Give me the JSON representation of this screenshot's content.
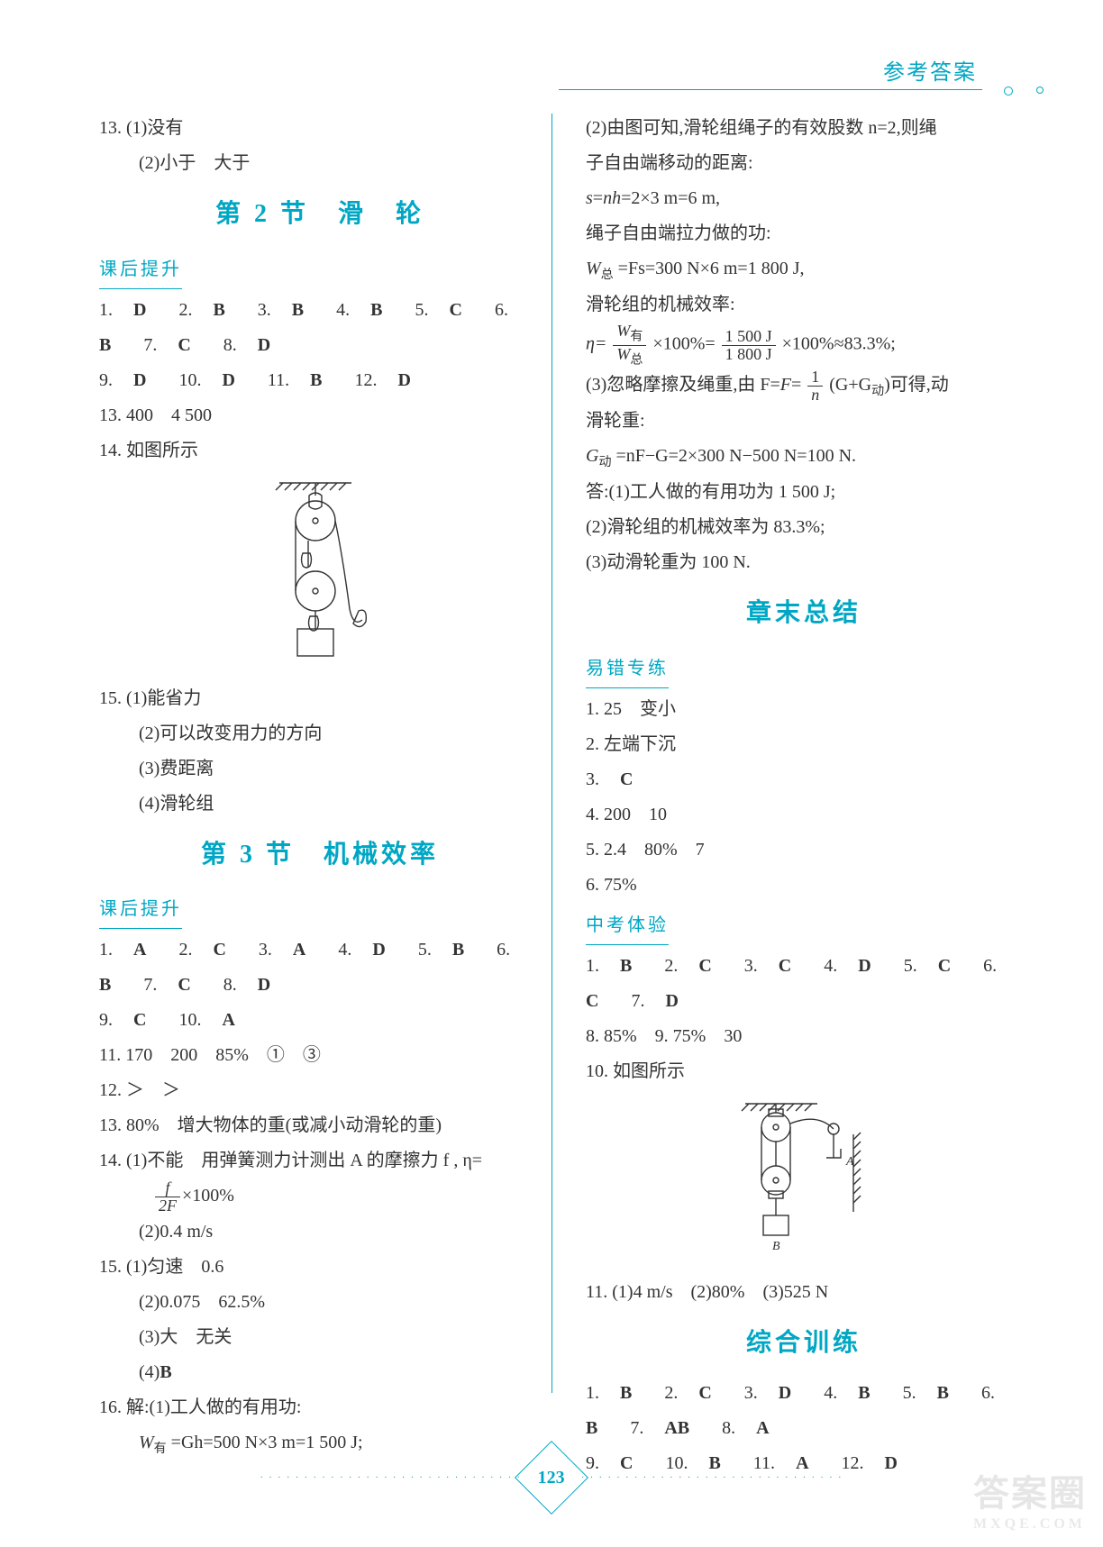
{
  "header": {
    "title": "参考答案",
    "pageNumber": "123"
  },
  "left": {
    "q13": {
      "l1": "13. (1)没有",
      "l2": "(2)小于　大于"
    },
    "sec2": {
      "title": "第 2 节　滑　轮",
      "sub": "课后提升"
    },
    "sec2_ans": [
      {
        "n": "1.",
        "a": "D"
      },
      {
        "n": "2.",
        "a": "B"
      },
      {
        "n": "3.",
        "a": "B"
      },
      {
        "n": "4.",
        "a": "B"
      },
      {
        "n": "5.",
        "a": "C"
      },
      {
        "n": "6.",
        "a": "B"
      },
      {
        "n": "7.",
        "a": "C"
      },
      {
        "n": "8.",
        "a": "D"
      }
    ],
    "sec2_ans2": [
      {
        "n": "9.",
        "a": "D"
      },
      {
        "n": "10.",
        "a": "D"
      },
      {
        "n": "11.",
        "a": "B"
      },
      {
        "n": "12.",
        "a": "D"
      }
    ],
    "sec2_q13": "13. 400　4 500",
    "sec2_q14": "14. 如图所示",
    "sec2_q15": {
      "pre": "15. (1)能省力",
      "l2": "(2)可以改变用力的方向",
      "l3": "(3)费距离",
      "l4": "(4)滑轮组"
    },
    "sec3": {
      "title": "第 3 节　机械效率",
      "sub": "课后提升"
    },
    "sec3_ans": [
      {
        "n": "1.",
        "a": "A"
      },
      {
        "n": "2.",
        "a": "C"
      },
      {
        "n": "3.",
        "a": "A"
      },
      {
        "n": "4.",
        "a": "D"
      },
      {
        "n": "5.",
        "a": "B"
      },
      {
        "n": "6.",
        "a": "B"
      },
      {
        "n": "7.",
        "a": "C"
      },
      {
        "n": "8.",
        "a": "D"
      }
    ],
    "sec3_ans2": [
      {
        "n": "9.",
        "a": "C"
      },
      {
        "n": "10.",
        "a": "A"
      }
    ],
    "sec3_q11": "11. 170　200　85%　①　③",
    "sec3_q12": "12. ＞　＞",
    "sec3_q13": "13. 80%　增大物体的重(或减小动滑轮的重)",
    "sec3_q14": {
      "l1": "14. (1)不能　用弹簧测力计测出 A 的摩擦力 f , η=",
      "formula": {
        "num": "f",
        "den": "2F",
        "tail": "×100%"
      },
      "l2": "(2)0.4 m/s"
    },
    "sec3_q15": {
      "l1": "15. (1)匀速　0.6",
      "l2": "(2)0.075　62.5%",
      "l3": "(3)大　无关",
      "l4": "(4)B"
    },
    "sec3_q16": {
      "l1": "16. 解:(1)工人做的有用功:",
      "eq": "W",
      "eq_sub": "有",
      "eq_rest": " =Gh=500 N×3 m=1 500 J;"
    }
  },
  "right": {
    "p1": "(2)由图可知,滑轮组绳子的有效股数 n=2,则绳",
    "p2": "子自由端移动的距离:",
    "eq1": {
      "lhs": "s=nh=2×3 m=6 m,"
    },
    "p3": "绳子自由端拉力做的功:",
    "eq2": {
      "var": "W",
      "sub": "总",
      "rest": " =Fs=300 N×6 m=1 800 J,"
    },
    "p4": "滑轮组的机械效率:",
    "eta": {
      "lhs": "η=",
      "num_v": "W",
      "num_s": "有",
      "den_v": "W",
      "den_s": "总",
      "mid": "×100%=",
      "num2": "1 500 J",
      "den2": "1 800 J",
      "tail": "×100%≈83.3%;"
    },
    "p5a": "(3)忽略摩擦及绳重,由 F=",
    "p5_num": "1",
    "p5_den": "n",
    "p5b": "(G+G",
    "p5_sub": "动",
    "p5c": ")可得,动",
    "p6": "滑轮重:",
    "eq3": {
      "var": "G",
      "sub": "动",
      "rest": " =nF−G=2×300 N−500 N=100 N."
    },
    "ans": {
      "pre": "答:(1)工人做的有用功为 1 500 J;",
      "l2": "(2)滑轮组的机械效率为 83.3%;",
      "l3": "(3)动滑轮重为 100 N."
    },
    "summary": {
      "title": "章末总结"
    },
    "yc": {
      "title": "易错专练"
    },
    "yc_q1": "1. 25　变小",
    "yc_q2": "2. 左端下沉",
    "yc_q3": {
      "n": "3.",
      "a": "C"
    },
    "yc_q4": "4. 200　10",
    "yc_q5": "5. 2.4　80%　7",
    "yc_q6": "6. 75%",
    "zk": {
      "title": "中考体验"
    },
    "zk_ans": [
      {
        "n": "1.",
        "a": "B"
      },
      {
        "n": "2.",
        "a": "C"
      },
      {
        "n": "3.",
        "a": "C"
      },
      {
        "n": "4.",
        "a": "D"
      },
      {
        "n": "5.",
        "a": "C"
      },
      {
        "n": "6.",
        "a": "C"
      },
      {
        "n": "7.",
        "a": "D"
      }
    ],
    "zk_q8": "8. 85%　9. 75%　30",
    "zk_q10": "10. 如图所示",
    "zk_q11": "11. (1)4 m/s　(2)80%　(3)525 N",
    "zh": {
      "title": "综合训练"
    },
    "zh_ans": [
      {
        "n": "1.",
        "a": "B"
      },
      {
        "n": "2.",
        "a": "C"
      },
      {
        "n": "3.",
        "a": "D"
      },
      {
        "n": "4.",
        "a": "B"
      },
      {
        "n": "5.",
        "a": "B"
      },
      {
        "n": "6.",
        "a": "B"
      },
      {
        "n": "7.",
        "a": "AB"
      },
      {
        "n": "8.",
        "a": "A"
      }
    ],
    "zh_ans2": [
      {
        "n": "9.",
        "a": "C"
      },
      {
        "n": "10.",
        "a": "B"
      },
      {
        "n": "11.",
        "a": "A"
      },
      {
        "n": "12.",
        "a": "D"
      }
    ],
    "labelB": "B",
    "labelA": "A"
  },
  "watermark": {
    "big": "答案圈",
    "small": "MXQE.COM"
  }
}
